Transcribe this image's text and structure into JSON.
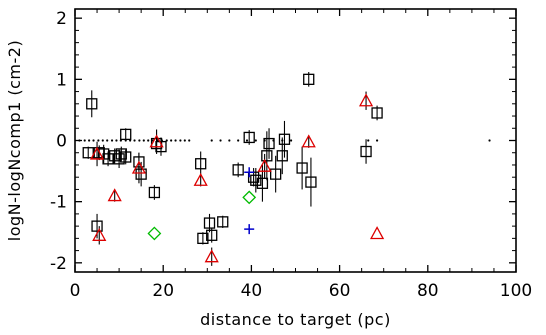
{
  "chart_data": {
    "type": "scatter",
    "title": "",
    "xlabel": "distance to target (pc)",
    "ylabel": "logN-logNcomp1 (cm-2)",
    "xlim": [
      0,
      100
    ],
    "ylim": [
      -2.15,
      2.15
    ],
    "x_ticks": [
      0,
      20,
      40,
      60,
      80,
      100
    ],
    "y_ticks": [
      -2,
      -1,
      0,
      1,
      2
    ],
    "grid": false,
    "legend": "none",
    "reference_line": {
      "y": 0,
      "style": "dotted"
    },
    "colors": {
      "square": "#000000",
      "triangle": "#dd0000",
      "diamond": "#00bb00",
      "plus": "#0000cc"
    },
    "series": [
      {
        "marker": "square",
        "points": [
          {
            "x": 3.8,
            "y": 0.6,
            "yerr": 0.22
          },
          {
            "x": 3.0,
            "y": -0.2,
            "yerr": 0.1
          },
          {
            "x": 5.5,
            "y": -0.2,
            "yerr": 0.12
          },
          {
            "x": 6.5,
            "y": -0.22,
            "yerr": 0.15
          },
          {
            "x": 7.5,
            "y": -0.3,
            "yerr": 0.12
          },
          {
            "x": 9.0,
            "y": -0.25,
            "yerr": 0.12
          },
          {
            "x": 10.0,
            "y": -0.3,
            "yerr": 0.15
          },
          {
            "x": 10.5,
            "y": -0.22,
            "yerr": 0.12
          },
          {
            "x": 11.5,
            "y": -0.27,
            "yerr": 0.12
          },
          {
            "x": 11.5,
            "y": 0.1,
            "yerr": 0.1
          },
          {
            "x": 5.0,
            "y": -1.4,
            "yerr": 0.2
          },
          {
            "x": 14.5,
            "y": -0.35,
            "yerr": 0.15
          },
          {
            "x": 15.0,
            "y": -0.55,
            "yerr": 0.2
          },
          {
            "x": 18.0,
            "y": -0.85,
            "yerr": 0.12
          },
          {
            "x": 18.5,
            "y": -0.05,
            "yerr": 0.12
          },
          {
            "x": 19.5,
            "y": -0.1,
            "yerr": 0.15
          },
          {
            "x": 28.5,
            "y": -0.38,
            "yerr": 0.2
          },
          {
            "x": 29.0,
            "y": -1.6,
            "yerr": 0.1
          },
          {
            "x": 30.5,
            "y": -1.35,
            "yerr": 0.15
          },
          {
            "x": 31.0,
            "y": -1.55,
            "yerr": 0.12
          },
          {
            "x": 33.5,
            "y": -1.33,
            "yerr": 0.1
          },
          {
            "x": 37.0,
            "y": -0.48,
            "yerr": 0.12
          },
          {
            "x": 39.5,
            "y": 0.05,
            "yerr": 0.12
          },
          {
            "x": 40.5,
            "y": -0.6,
            "yerr": 0.15
          },
          {
            "x": 41.0,
            "y": -0.65,
            "yerr": 0.2
          },
          {
            "x": 42.5,
            "y": -0.7,
            "yerr": 0.3
          },
          {
            "x": 43.5,
            "y": -0.25,
            "yerr": 0.4
          },
          {
            "x": 44.0,
            "y": -0.05,
            "yerr": 0.25
          },
          {
            "x": 45.5,
            "y": -0.55,
            "yerr": 0.3
          },
          {
            "x": 47.0,
            "y": -0.25,
            "yerr": 0.3
          },
          {
            "x": 47.5,
            "y": 0.02,
            "yerr": 0.3
          },
          {
            "x": 51.5,
            "y": -0.45,
            "yerr": 0.35
          },
          {
            "x": 53.0,
            "y": 1.0,
            "yerr": 0.12
          },
          {
            "x": 53.5,
            "y": -0.68,
            "yerr": 0.4
          },
          {
            "x": 66.0,
            "y": -0.18,
            "yerr": 0.2
          },
          {
            "x": 68.5,
            "y": 0.45,
            "yerr": 0.12
          }
        ]
      },
      {
        "marker": "triangle",
        "points": [
          {
            "x": 5.0,
            "y": -0.22,
            "yerr": 0.2
          },
          {
            "x": 5.5,
            "y": -1.55,
            "yerr": 0.15
          },
          {
            "x": 9.0,
            "y": -0.9,
            "yerr": 0.1
          },
          {
            "x": 14.5,
            "y": -0.45,
            "yerr": 0.25
          },
          {
            "x": 18.5,
            "y": -0.02,
            "yerr": 0.2
          },
          {
            "x": 28.5,
            "y": -0.65,
            "yerr": 0.1
          },
          {
            "x": 31.0,
            "y": -1.9,
            "yerr": 0.15
          },
          {
            "x": 43.0,
            "y": -0.42,
            "yerr": 0.2
          },
          {
            "x": 53.0,
            "y": -0.02,
            "yerr": 0.1
          },
          {
            "x": 66.0,
            "y": 0.65,
            "yerr": 0.15
          },
          {
            "x": 68.5,
            "y": -1.52,
            "yerr": 0
          }
        ]
      },
      {
        "marker": "diamond",
        "points": [
          {
            "x": 18.0,
            "y": -1.52
          },
          {
            "x": 39.5,
            "y": -0.93
          }
        ]
      },
      {
        "marker": "plus",
        "points": [
          {
            "x": 39.5,
            "y": -0.52
          },
          {
            "x": 39.5,
            "y": -1.45
          }
        ]
      }
    ],
    "zero_dots": [
      {
        "x": 1.0
      },
      {
        "x": 2.2
      },
      {
        "x": 3.2
      },
      {
        "x": 4.2
      },
      {
        "x": 5.3
      },
      {
        "x": 6.3
      },
      {
        "x": 7.3
      },
      {
        "x": 8.4
      },
      {
        "x": 9.4
      },
      {
        "x": 10.4
      },
      {
        "x": 11.5
      },
      {
        "x": 12.5
      },
      {
        "x": 13.5
      },
      {
        "x": 14.6
      },
      {
        "x": 15.6
      },
      {
        "x": 16.6
      },
      {
        "x": 17.7
      },
      {
        "x": 18.7
      },
      {
        "x": 19.7
      },
      {
        "x": 20.8
      },
      {
        "x": 21.8
      },
      {
        "x": 22.8
      },
      {
        "x": 23.9
      },
      {
        "x": 24.9
      },
      {
        "x": 25.9
      },
      {
        "x": 31.0
      },
      {
        "x": 33.0
      },
      {
        "x": 35.0
      },
      {
        "x": 37.0
      },
      {
        "x": 39.0
      },
      {
        "x": 41.0
      },
      {
        "x": 43.0
      },
      {
        "x": 45.0
      },
      {
        "x": 47.0
      },
      {
        "x": 49.0
      },
      {
        "x": 66.5
      },
      {
        "x": 68.5
      },
      {
        "x": 94.0
      }
    ]
  }
}
